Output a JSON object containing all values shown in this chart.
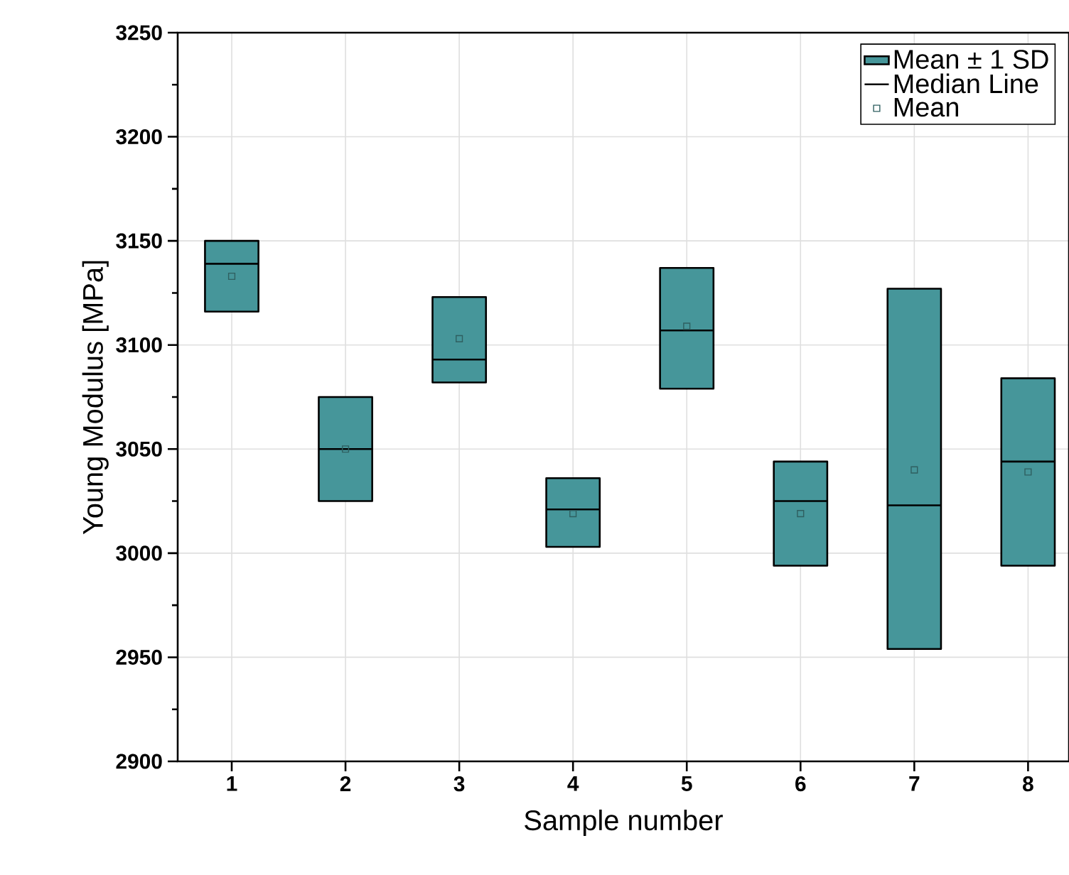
{
  "chart_data": {
    "type": "box",
    "xlabel": "Sample number",
    "ylabel": "Young Modulus [MPa]",
    "categories": [
      "1",
      "2",
      "3",
      "4",
      "5",
      "6",
      "7",
      "8"
    ],
    "ylim": [
      2900,
      3250
    ],
    "yticks": [
      2900,
      2950,
      3000,
      3050,
      3100,
      3150,
      3200,
      3250
    ],
    "grid": true,
    "legend": "top right",
    "annotations": [
      "Median Line"
    ],
    "series": [
      {
        "name": "Mean ± 1 SD",
        "type": "box",
        "color": "#46969a",
        "boxes": [
          {
            "low": 3116,
            "q1": 3116,
            "median": 3139,
            "q3": 3150,
            "high": 3150
          },
          {
            "low": 3025,
            "q1": 3025,
            "median": 3050,
            "q3": 3075,
            "high": 3075
          },
          {
            "low": 3082,
            "q1": 3082,
            "median": 3093,
            "q3": 3123,
            "high": 3123
          },
          {
            "low": 3003,
            "q1": 3003,
            "median": 3021,
            "q3": 3036,
            "high": 3036
          },
          {
            "low": 3079,
            "q1": 3079,
            "median": 3107,
            "q3": 3137,
            "high": 3137
          },
          {
            "low": 2994,
            "q1": 2994,
            "median": 3025,
            "q3": 3044,
            "high": 3044
          },
          {
            "low": 2954,
            "q1": 2954,
            "median": 3023,
            "q3": 3127,
            "high": 3127
          },
          {
            "low": 2994,
            "q1": 2994,
            "median": 3044,
            "q3": 3084,
            "high": 3084
          }
        ]
      },
      {
        "name": "Mean",
        "type": "scatter",
        "color": "#2f5f60",
        "marker": "square",
        "x": [
          "1",
          "2",
          "3",
          "4",
          "5",
          "6",
          "7",
          "8"
        ],
        "values": [
          3133,
          3050,
          3103,
          3019,
          3109,
          3019,
          3040,
          3039
        ]
      }
    ]
  }
}
